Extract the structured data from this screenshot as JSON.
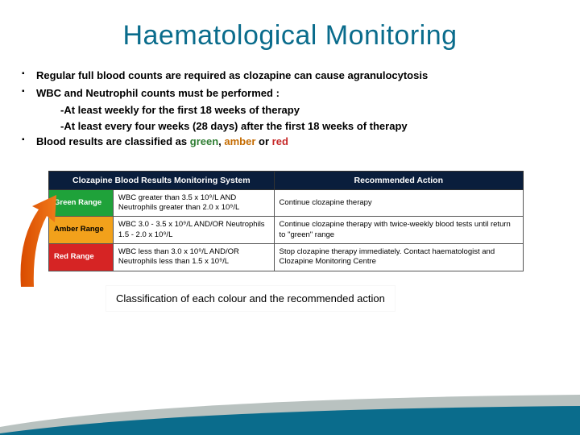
{
  "title": "Haematological Monitoring",
  "bullets": {
    "b1": "Regular full blood counts are required as clozapine can cause agranulocytosis",
    "b2": "WBC and Neutrophil counts must be performed :",
    "b2a": "-At least weekly for the first 18 weeks of therapy",
    "b2b": "-At least every four weeks (28 days) after the first 18 weeks of therapy",
    "b3a": "Blood results are classified as ",
    "b3_green": "green",
    "b3b": ", ",
    "b3_amber": "amber",
    "b3c": " or ",
    "b3_red": "red"
  },
  "table": {
    "header1": "Clozapine Blood Results Monitoring System",
    "header2": "Recommended Action",
    "rows": [
      {
        "range_label": "Green Range",
        "range_class": "range-green",
        "criteria": "WBC greater than 3.5 x 10⁹/L AND Neutrophils greater than 2.0 x 10⁹/L",
        "action": "Continue clozapine therapy"
      },
      {
        "range_label": "Amber Range",
        "range_class": "range-amber",
        "criteria": "WBC 3.0 - 3.5 x 10⁹/L AND/OR Neutrophils 1.5 - 2.0 x 10⁹/L",
        "action": "Continue clozapine therapy with twice-weekly blood tests until return to \"green\" range"
      },
      {
        "range_label": "Red Range",
        "range_class": "range-red",
        "criteria": "WBC less than 3.0 x 10⁹/L AND/OR Neutrophils less than 1.5 x 10⁹/L",
        "action": "Stop clozapine therapy immediately. Contact haematologist and Clozapine Monitoring Centre"
      }
    ]
  },
  "caption": "Classification of each colour and the recommended action",
  "colors": {
    "title": "#0a6c8c",
    "header_bg": "#0a1e3c",
    "green": "#1fa23a",
    "amber": "#f2a11b",
    "red": "#d62424",
    "swoosh1": "#0a6c8c",
    "swoosh2": "#b9c2c0"
  }
}
